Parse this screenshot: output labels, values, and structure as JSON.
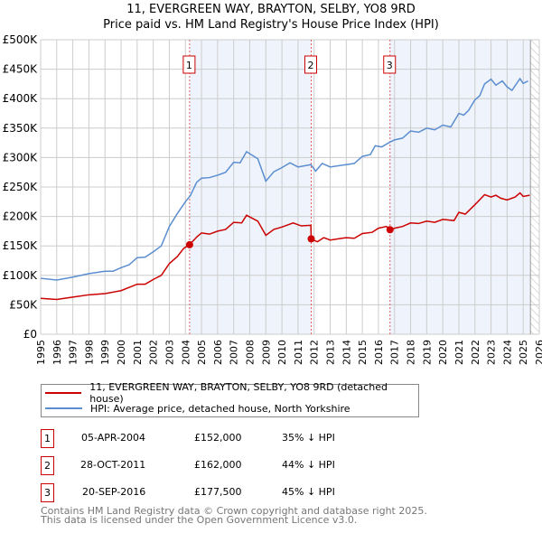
{
  "chart_data": {
    "type": "line",
    "title": "11, EVERGREEN WAY, BRAYTON, SELBY, YO8 9RD",
    "subtitle": "Price paid vs. HM Land Registry's House Price Index (HPI)",
    "xlim": [
      1995,
      2026
    ],
    "ylim": [
      0,
      500000
    ],
    "x_ticks": [
      "1995",
      "1996",
      "1997",
      "1998",
      "1999",
      "2000",
      "2001",
      "2002",
      "2003",
      "2004",
      "2005",
      "2006",
      "2007",
      "2008",
      "2009",
      "2010",
      "2011",
      "2012",
      "2013",
      "2014",
      "2015",
      "2016",
      "2017",
      "2018",
      "2019",
      "2020",
      "2021",
      "2022",
      "2023",
      "2024",
      "2025",
      "2026"
    ],
    "y_ticks": [
      {
        "v": 0,
        "label": "£0"
      },
      {
        "v": 50000,
        "label": "£50K"
      },
      {
        "v": 100000,
        "label": "£100K"
      },
      {
        "v": 150000,
        "label": "£150K"
      },
      {
        "v": 200000,
        "label": "£200K"
      },
      {
        "v": 250000,
        "label": "£250K"
      },
      {
        "v": 300000,
        "label": "£300K"
      },
      {
        "v": 350000,
        "label": "£350K"
      },
      {
        "v": 400000,
        "label": "£400K"
      },
      {
        "v": 450000,
        "label": "£450K"
      },
      {
        "v": 500000,
        "label": "£500K"
      }
    ],
    "grid": true,
    "series": [
      {
        "name": "11, EVERGREEN WAY, BRAYTON, SELBY, YO8 9RD (detached house)",
        "color": "#cc0000",
        "points": [
          [
            1995,
            61
          ],
          [
            1996,
            59
          ],
          [
            1997,
            63
          ],
          [
            1998,
            67
          ],
          [
            1999,
            69
          ],
          [
            2000,
            74
          ],
          [
            2001,
            85
          ],
          [
            2001.5,
            85
          ],
          [
            2002,
            93
          ],
          [
            2002.5,
            100
          ],
          [
            2003,
            120
          ],
          [
            2003.5,
            132
          ],
          [
            2003.9,
            146
          ],
          [
            2004.26,
            152
          ],
          [
            2004.7,
            165
          ],
          [
            2005,
            172
          ],
          [
            2005.5,
            170
          ],
          [
            2006,
            175
          ],
          [
            2006.5,
            178
          ],
          [
            2007,
            190
          ],
          [
            2007.5,
            189
          ],
          [
            2007.8,
            202
          ],
          [
            2008.5,
            192
          ],
          [
            2009,
            168
          ],
          [
            2009.5,
            178
          ],
          [
            2010,
            182
          ],
          [
            2010.7,
            189
          ],
          [
            2011.2,
            184
          ],
          [
            2011.8,
            185
          ],
          [
            2011.82,
            162
          ],
          [
            2012.2,
            157
          ],
          [
            2012.6,
            164
          ],
          [
            2013,
            160
          ],
          [
            2014,
            164
          ],
          [
            2014.5,
            163
          ],
          [
            2015,
            171
          ],
          [
            2015.6,
            173
          ],
          [
            2016,
            180
          ],
          [
            2016.5,
            183
          ],
          [
            2016.72,
            177.5
          ],
          [
            2017,
            180
          ],
          [
            2017.5,
            183
          ],
          [
            2018,
            189
          ],
          [
            2018.5,
            188
          ],
          [
            2019,
            192
          ],
          [
            2019.5,
            190
          ],
          [
            2020,
            195
          ],
          [
            2020.7,
            193
          ],
          [
            2021,
            207
          ],
          [
            2021.4,
            204
          ],
          [
            2022,
            220
          ],
          [
            2022.6,
            237
          ],
          [
            2023,
            233
          ],
          [
            2023.3,
            236
          ],
          [
            2023.6,
            231
          ],
          [
            2024,
            228
          ],
          [
            2024.5,
            233
          ],
          [
            2024.8,
            240
          ],
          [
            2025,
            234
          ],
          [
            2025.4,
            236
          ]
        ]
      },
      {
        "name": "HPI: Average price, detached house, North Yorkshire",
        "color": "#5b8ed0",
        "points": [
          [
            1995,
            95
          ],
          [
            1996,
            92
          ],
          [
            1997,
            97
          ],
          [
            1998,
            103
          ],
          [
            1999,
            107
          ],
          [
            1999.5,
            107
          ],
          [
            2000,
            113
          ],
          [
            2000.5,
            118
          ],
          [
            2001,
            130
          ],
          [
            2001.5,
            131
          ],
          [
            2002,
            140
          ],
          [
            2002.5,
            150
          ],
          [
            2003,
            183
          ],
          [
            2003.5,
            205
          ],
          [
            2004,
            225
          ],
          [
            2004.3,
            235
          ],
          [
            2004.7,
            258
          ],
          [
            2005,
            265
          ],
          [
            2005.5,
            266
          ],
          [
            2006,
            270
          ],
          [
            2006.5,
            275
          ],
          [
            2007,
            292
          ],
          [
            2007.4,
            291
          ],
          [
            2007.8,
            310
          ],
          [
            2008.5,
            298
          ],
          [
            2009,
            260
          ],
          [
            2009.5,
            276
          ],
          [
            2010,
            283
          ],
          [
            2010.5,
            291
          ],
          [
            2011,
            284
          ],
          [
            2011.8,
            288
          ],
          [
            2012.1,
            277
          ],
          [
            2012.5,
            290
          ],
          [
            2013,
            284
          ],
          [
            2014,
            288
          ],
          [
            2014.5,
            290
          ],
          [
            2015,
            302
          ],
          [
            2015.5,
            305
          ],
          [
            2015.8,
            320
          ],
          [
            2016.2,
            318
          ],
          [
            2016.7,
            326
          ],
          [
            2017,
            330
          ],
          [
            2017.5,
            333
          ],
          [
            2018,
            345
          ],
          [
            2018.5,
            343
          ],
          [
            2019,
            350
          ],
          [
            2019.5,
            347
          ],
          [
            2020,
            355
          ],
          [
            2020.5,
            352
          ],
          [
            2021,
            375
          ],
          [
            2021.3,
            372
          ],
          [
            2021.6,
            380
          ],
          [
            2022,
            398
          ],
          [
            2022.3,
            405
          ],
          [
            2022.6,
            425
          ],
          [
            2023,
            433
          ],
          [
            2023.3,
            423
          ],
          [
            2023.7,
            430
          ],
          [
            2024,
            420
          ],
          [
            2024.3,
            414
          ],
          [
            2024.8,
            434
          ],
          [
            2025,
            426
          ],
          [
            2025.3,
            430
          ]
        ]
      }
    ],
    "units_note": "values in £K",
    "sales": [
      {
        "n": "1",
        "x": 2004.26,
        "y": 152
      },
      {
        "n": "2",
        "x": 2011.82,
        "y": 162
      },
      {
        "n": "3",
        "x": 2016.72,
        "y": 177.5
      }
    ],
    "shaded_ranges": [
      [
        2004.26,
        2011.82
      ],
      [
        2016.72,
        2025.45
      ]
    ],
    "forecast_from": 2025.45,
    "legend_position": "below"
  },
  "table": [
    {
      "n": "1",
      "date": "05-APR-2004",
      "price": "£152,000",
      "diff": "35% ↓ HPI"
    },
    {
      "n": "2",
      "date": "28-OCT-2011",
      "price": "£162,000",
      "diff": "44% ↓ HPI"
    },
    {
      "n": "3",
      "date": "20-SEP-2016",
      "price": "£177,500",
      "diff": "45% ↓ HPI"
    }
  ],
  "footer": [
    "Contains HM Land Registry data © Crown copyright and database right 2025.",
    "This data is licensed under the Open Government Licence v3.0."
  ]
}
